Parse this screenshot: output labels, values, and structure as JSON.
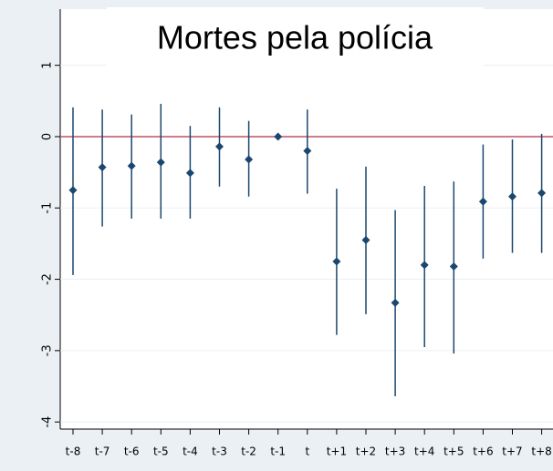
{
  "chart_data": {
    "type": "errorbar",
    "title": "Mortes pela polícia",
    "categories": [
      "t-8",
      "t-7",
      "t-6",
      "t-5",
      "t-4",
      "t-3",
      "t-2",
      "t-1",
      "t",
      "t+1",
      "t+2",
      "t+3",
      "t+4",
      "t+5",
      "t+6",
      "t+7",
      "t+8"
    ],
    "values": [
      -0.75,
      -0.43,
      -0.41,
      -0.36,
      -0.51,
      -0.14,
      -0.32,
      0,
      -0.2,
      -1.75,
      -1.45,
      -2.33,
      -1.8,
      -1.82,
      -0.91,
      -0.84,
      -0.79
    ],
    "ci_lower": [
      -1.94,
      -1.26,
      -1.15,
      -1.15,
      -1.15,
      -0.7,
      -0.84,
      null,
      -0.8,
      -2.78,
      -2.49,
      -3.64,
      -2.95,
      -3.04,
      -1.71,
      -1.63,
      -1.63
    ],
    "ci_upper": [
      0.41,
      0.38,
      0.31,
      0.46,
      0.15,
      0.41,
      0.22,
      null,
      0.38,
      -0.73,
      -0.42,
      -1.03,
      -0.69,
      -0.63,
      -0.11,
      -0.04,
      0.04
    ],
    "color": "#1a476f",
    "reference_line": 0,
    "reference_color": "#c0506a",
    "ylim": [
      -4.1,
      1.2
    ],
    "yticks": [
      1,
      0,
      -1,
      -2,
      -3,
      -4
    ],
    "grid": true
  }
}
